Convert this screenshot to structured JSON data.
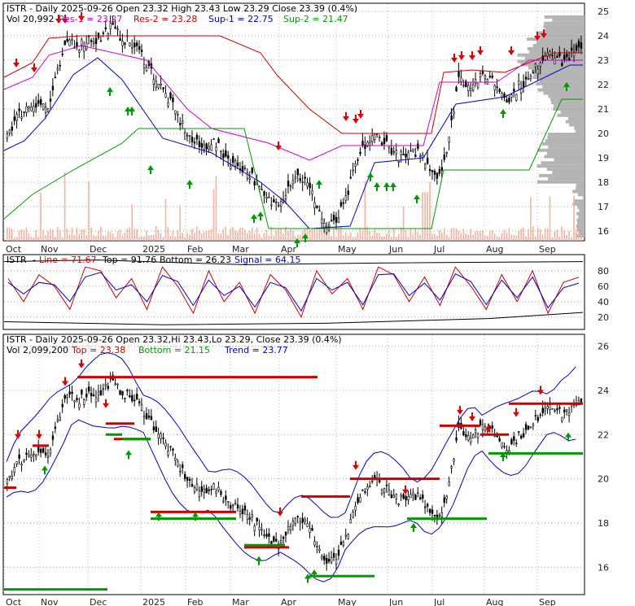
{
  "chart_data": [
    {
      "type": "candlestick",
      "panel": "price",
      "header": {
        "ticker": "ISTR",
        "info": "ISTR - Daily 2025-09-26 Open 23.32  High 23.43  Low 23.29  Close 23.39 (0.4%)",
        "vol": "Vol 20,992",
        "res1": "Res-1 = 23.27",
        "res2": "Res-2 = 23.28",
        "sup1": "Sup-1 = 22.75",
        "sup2": "Sup-2 = 21.47"
      },
      "y_ticks": [
        "25",
        "24",
        "23",
        "22",
        "21",
        "20",
        "19",
        "18",
        "17",
        "16"
      ],
      "x_ticks": [
        "Oct",
        "Nov",
        "Dec",
        "2025",
        "Feb",
        "Mar",
        "Apr",
        "May",
        "Jun",
        "Jul",
        "Aug",
        "Sep"
      ],
      "ylim": [
        15.6,
        25.3
      ],
      "close": [
        20.0,
        20.7,
        21.1,
        21.3,
        21.0,
        22.6,
        23.9,
        23.6,
        23.9,
        23.8,
        24.4,
        24.0,
        23.7,
        23.3,
        22.6,
        21.9,
        21.2,
        20.4,
        19.7,
        19.4,
        19.7,
        19.2,
        18.8,
        18.6,
        18.2,
        17.4,
        17.1,
        17.5,
        18.3,
        18.1,
        17.3,
        16.2,
        16.3,
        17.2,
        18.7,
        19.6,
        19.9,
        19.6,
        19.1,
        19.0,
        19.3,
        18.8,
        18.2,
        19.4,
        22.3,
        22.0,
        22.2,
        22.4,
        21.8,
        21.4,
        22.0,
        22.2,
        23.0,
        23.5,
        22.9,
        23.2,
        23.39
      ],
      "volume_label": "Vol 20,992",
      "colors": {
        "res1": "#cc00cc",
        "res2": "#cc0000",
        "sup1": "#0000cc",
        "sup2": "#009900",
        "up_arrow": "#009900",
        "down_arrow": "#dd0000",
        "volume_profile": "#b4b4b4",
        "volume": "#f2b4a0"
      }
    },
    {
      "type": "line",
      "panel": "stochastic",
      "header": {
        "ticker": "ISTR",
        "line": "Line = 71.67",
        "top": "Top = 91.76",
        "bottom": "Bottom = 26.23",
        "signal": "Signal = 64.15"
      },
      "y_ticks": [
        "80",
        "60",
        "40",
        "20"
      ],
      "ylim": [
        5,
        100
      ],
      "series": [
        {
          "name": "Line",
          "color": "#cc0000",
          "values": [
            70,
            40,
            75,
            60,
            30,
            85,
            80,
            45,
            70,
            30,
            85,
            60,
            25,
            80,
            40,
            65,
            25,
            75,
            55,
            20,
            80,
            50,
            70,
            30,
            85,
            75,
            40,
            72,
            35,
            85,
            60,
            30,
            75,
            40,
            80,
            25,
            65,
            71.67
          ]
        },
        {
          "name": "Signal",
          "color": "#0000cc",
          "values": [
            65,
            50,
            65,
            62,
            40,
            72,
            78,
            55,
            62,
            40,
            74,
            66,
            35,
            68,
            48,
            60,
            33,
            65,
            58,
            28,
            70,
            55,
            65,
            36,
            75,
            76,
            48,
            64,
            42,
            76,
            66,
            36,
            68,
            45,
            72,
            32,
            58,
            64.15
          ]
        }
      ]
    },
    {
      "type": "candlestick",
      "panel": "trend",
      "header": {
        "ticker": "ISTR",
        "info": "ISTR - Daily 2025-09-26 Open 23.32,Hi 23.43,Lo 23.29, Close 23.39 (0.4%)",
        "vol": "Vol 2,099,200",
        "top": "Top = 23.38",
        "bottom": "Bottom = 21.15",
        "trend": "Trend = 23.77"
      },
      "y_ticks": [
        "26",
        "24",
        "22",
        "20",
        "18",
        "16"
      ],
      "x_ticks": [
        "Oct",
        "Nov",
        "Dec",
        "2025",
        "Feb",
        "Mar",
        "Apr",
        "May",
        "Jun",
        "Jul",
        "Aug",
        "Sep"
      ],
      "ylim": [
        14.8,
        26.5
      ],
      "colors": {
        "top": "#cc0000",
        "bottom": "#009900",
        "trend": "#0000cc"
      }
    }
  ]
}
